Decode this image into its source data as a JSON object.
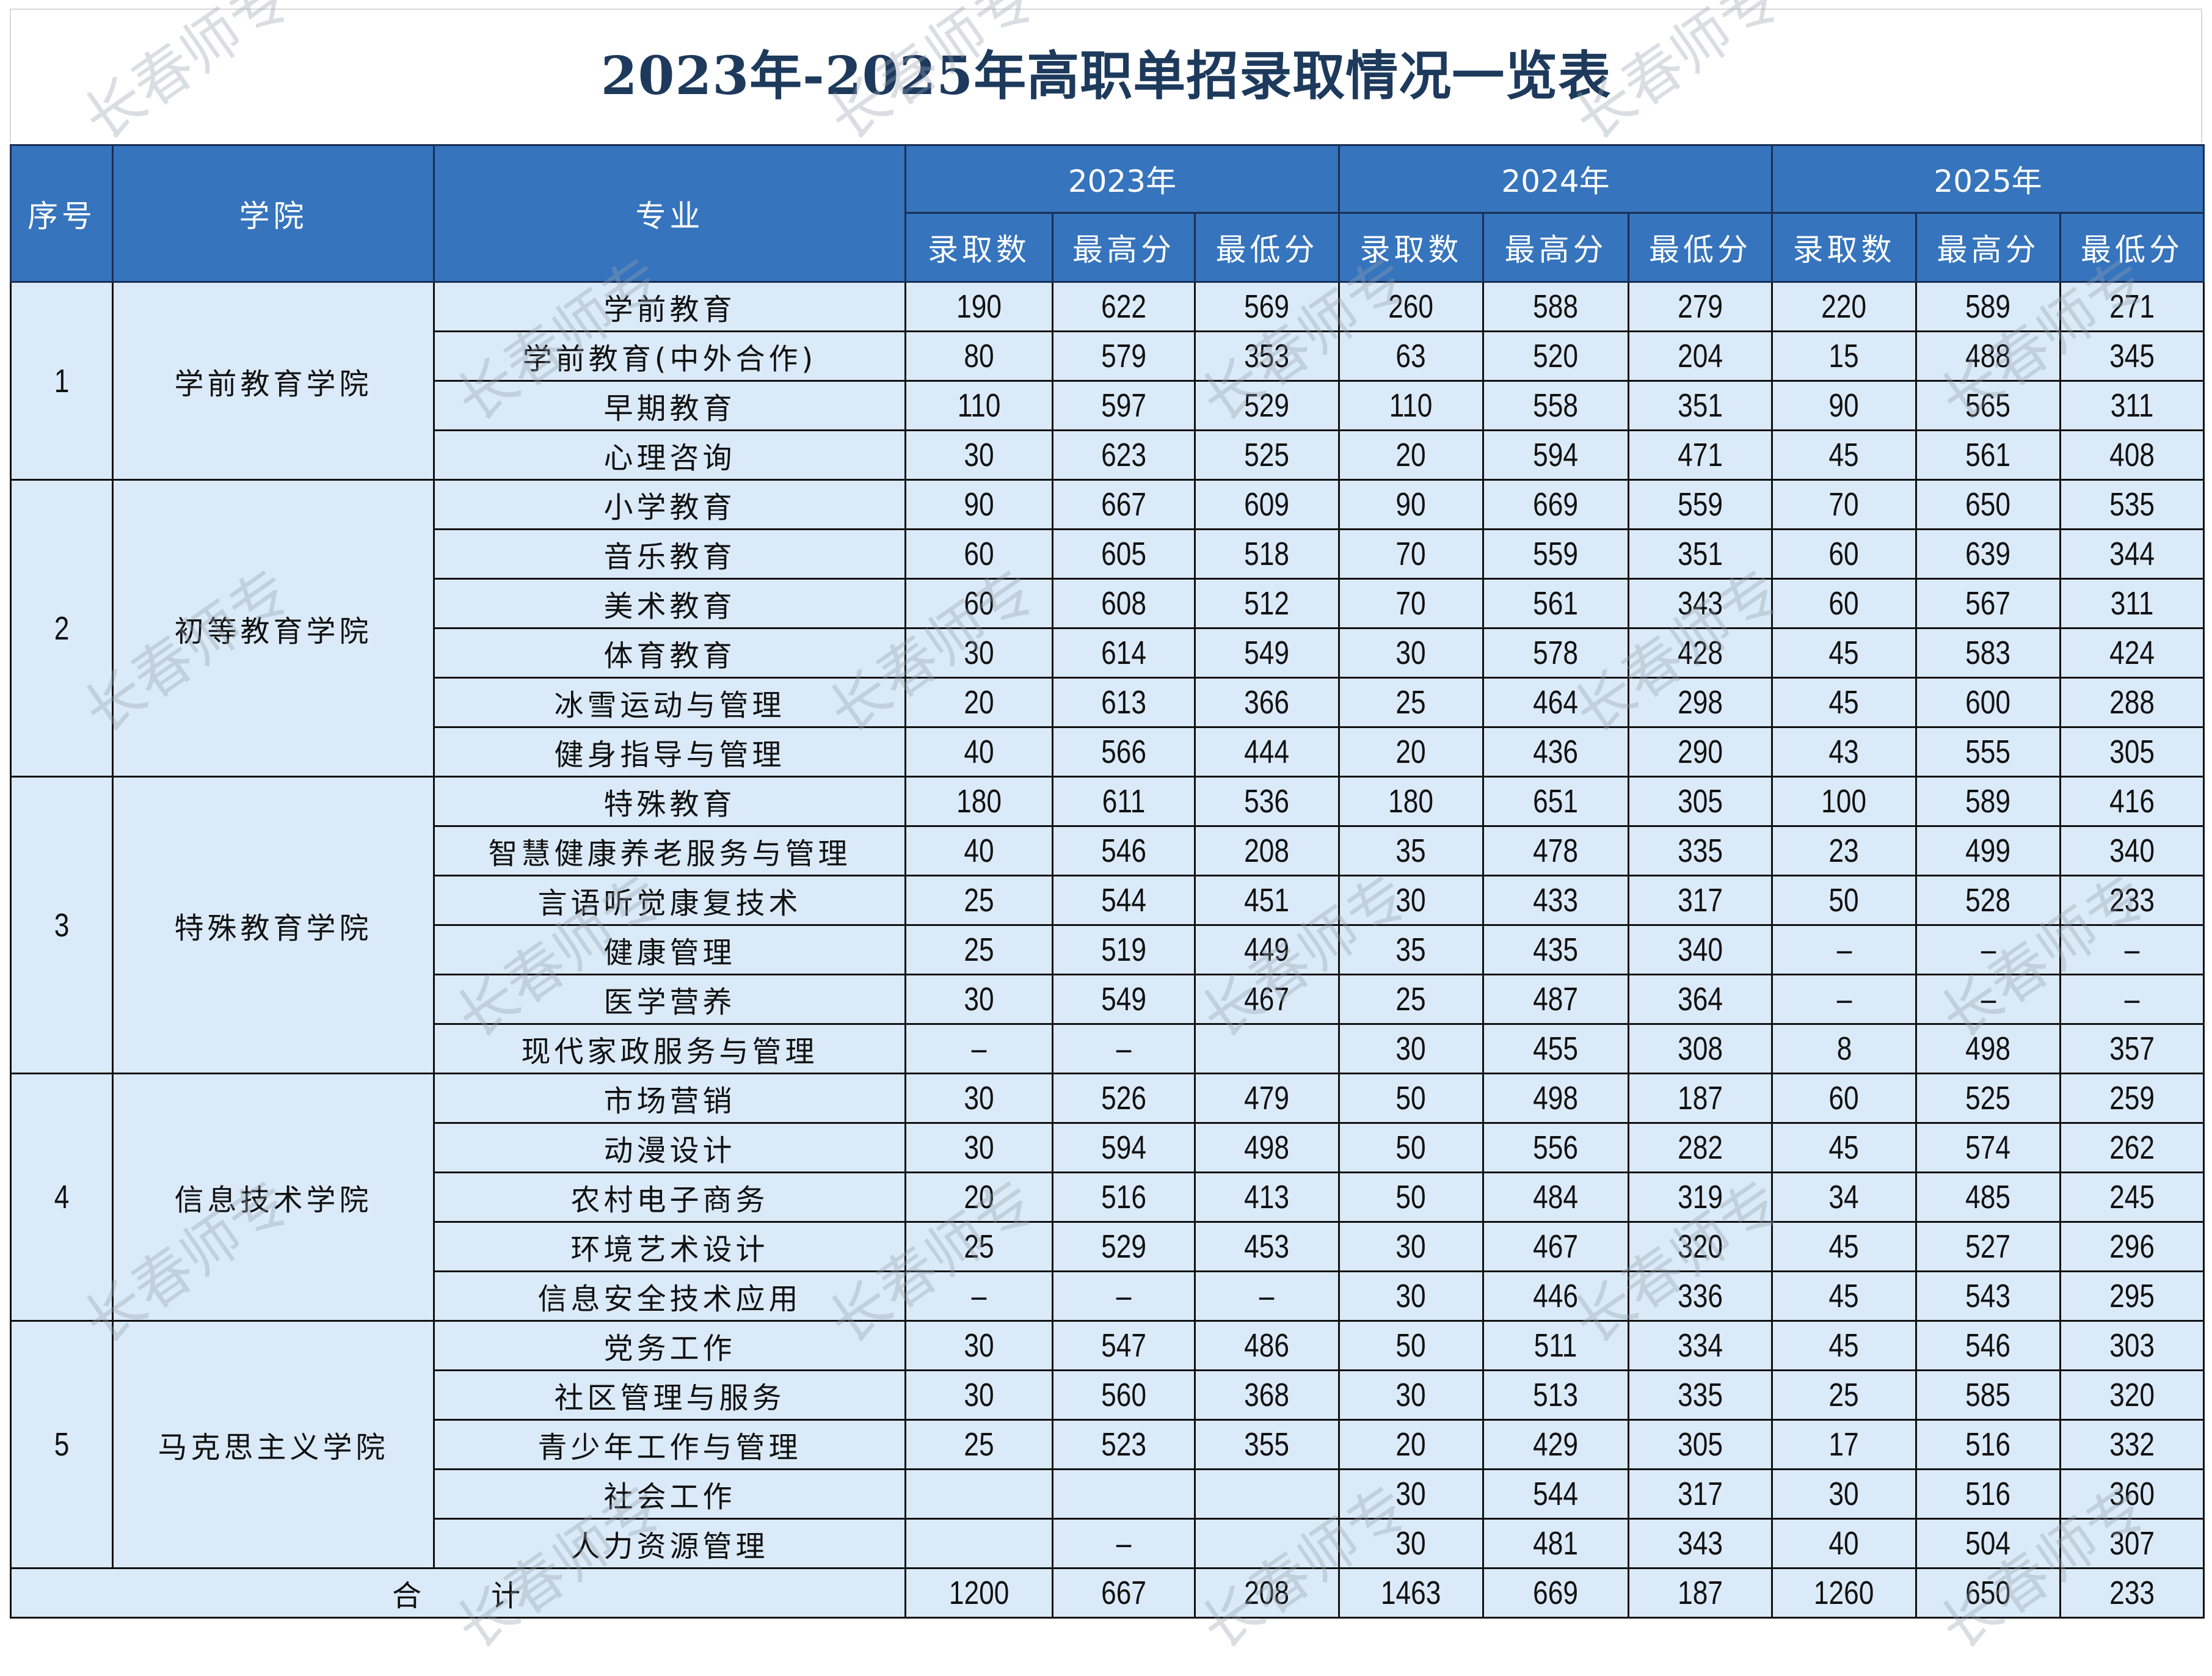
{
  "title": "2023年-2025年高职单招录取情况一览表",
  "watermark": "长春师专",
  "colors": {
    "header_bg": "#3674bd",
    "cell_bg": "#dbeaf8",
    "title": "#1d3a5c"
  },
  "headers": {
    "no": "序号",
    "college": "学院",
    "major": "专业",
    "years": [
      "2023年",
      "2024年",
      "2025年"
    ],
    "sub": [
      "录取数",
      "最高分",
      "最低分"
    ]
  },
  "colleges": [
    {
      "no": "1",
      "name": "学前教育学院",
      "majors": [
        {
          "name": "学前教育",
          "values": [
            "190",
            "622",
            "569",
            "260",
            "588",
            "279",
            "220",
            "589",
            "271"
          ]
        },
        {
          "name": "学前教育(中外合作)",
          "values": [
            "80",
            "579",
            "353",
            "63",
            "520",
            "204",
            "15",
            "488",
            "345"
          ]
        },
        {
          "name": "早期教育",
          "values": [
            "110",
            "597",
            "529",
            "110",
            "558",
            "351",
            "90",
            "565",
            "311"
          ]
        },
        {
          "name": "心理咨询",
          "values": [
            "30",
            "623",
            "525",
            "20",
            "594",
            "471",
            "45",
            "561",
            "408"
          ]
        }
      ]
    },
    {
      "no": "2",
      "name": "初等教育学院",
      "majors": [
        {
          "name": "小学教育",
          "values": [
            "90",
            "667",
            "609",
            "90",
            "669",
            "559",
            "70",
            "650",
            "535"
          ]
        },
        {
          "name": "音乐教育",
          "values": [
            "60",
            "605",
            "518",
            "70",
            "559",
            "351",
            "60",
            "639",
            "344"
          ]
        },
        {
          "name": "美术教育",
          "values": [
            "60",
            "608",
            "512",
            "70",
            "561",
            "343",
            "60",
            "567",
            "311"
          ]
        },
        {
          "name": "体育教育",
          "values": [
            "30",
            "614",
            "549",
            "30",
            "578",
            "428",
            "45",
            "583",
            "424"
          ]
        },
        {
          "name": "冰雪运动与管理",
          "values": [
            "20",
            "613",
            "366",
            "25",
            "464",
            "298",
            "45",
            "600",
            "288"
          ]
        },
        {
          "name": "健身指导与管理",
          "values": [
            "40",
            "566",
            "444",
            "20",
            "436",
            "290",
            "43",
            "555",
            "305"
          ]
        }
      ]
    },
    {
      "no": "3",
      "name": "特殊教育学院",
      "majors": [
        {
          "name": "特殊教育",
          "values": [
            "180",
            "611",
            "536",
            "180",
            "651",
            "305",
            "100",
            "589",
            "416"
          ]
        },
        {
          "name": "智慧健康养老服务与管理",
          "values": [
            "40",
            "546",
            "208",
            "35",
            "478",
            "335",
            "23",
            "499",
            "340"
          ]
        },
        {
          "name": "言语听觉康复技术",
          "values": [
            "25",
            "544",
            "451",
            "30",
            "433",
            "317",
            "50",
            "528",
            "233"
          ]
        },
        {
          "name": "健康管理",
          "values": [
            "25",
            "519",
            "449",
            "35",
            "435",
            "340",
            "–",
            "–",
            "–"
          ]
        },
        {
          "name": "医学营养",
          "values": [
            "30",
            "549",
            "467",
            "25",
            "487",
            "364",
            "–",
            "–",
            "–"
          ]
        },
        {
          "name": "现代家政服务与管理",
          "values": [
            "–",
            "–",
            "",
            "30",
            "455",
            "308",
            "8",
            "498",
            "357"
          ]
        }
      ]
    },
    {
      "no": "4",
      "name": "信息技术学院",
      "majors": [
        {
          "name": "市场营销",
          "values": [
            "30",
            "526",
            "479",
            "50",
            "498",
            "187",
            "60",
            "525",
            "259"
          ]
        },
        {
          "name": "动漫设计",
          "values": [
            "30",
            "594",
            "498",
            "50",
            "556",
            "282",
            "45",
            "574",
            "262"
          ]
        },
        {
          "name": "农村电子商务",
          "values": [
            "20",
            "516",
            "413",
            "50",
            "484",
            "319",
            "34",
            "485",
            "245"
          ]
        },
        {
          "name": "环境艺术设计",
          "values": [
            "25",
            "529",
            "453",
            "30",
            "467",
            "320",
            "45",
            "527",
            "296"
          ]
        },
        {
          "name": "信息安全技术应用",
          "values": [
            "–",
            "–",
            "–",
            "30",
            "446",
            "336",
            "45",
            "543",
            "295"
          ]
        }
      ]
    },
    {
      "no": "5",
      "name": "马克思主义学院",
      "majors": [
        {
          "name": "党务工作",
          "values": [
            "30",
            "547",
            "486",
            "50",
            "511",
            "334",
            "45",
            "546",
            "303"
          ]
        },
        {
          "name": "社区管理与服务",
          "values": [
            "30",
            "560",
            "368",
            "30",
            "513",
            "335",
            "25",
            "585",
            "320"
          ]
        },
        {
          "name": "青少年工作与管理",
          "values": [
            "25",
            "523",
            "355",
            "20",
            "429",
            "305",
            "17",
            "516",
            "332"
          ]
        },
        {
          "name": "社会工作",
          "values": [
            "",
            "",
            "",
            "30",
            "544",
            "317",
            "30",
            "516",
            "360"
          ]
        },
        {
          "name": "人力资源管理",
          "values": [
            "",
            "–",
            "",
            "30",
            "481",
            "343",
            "40",
            "504",
            "307"
          ]
        }
      ]
    }
  ],
  "total": {
    "label": "合　　计",
    "values": [
      "1200",
      "667",
      "208",
      "1463",
      "669",
      "187",
      "1260",
      "650",
      "233"
    ]
  }
}
